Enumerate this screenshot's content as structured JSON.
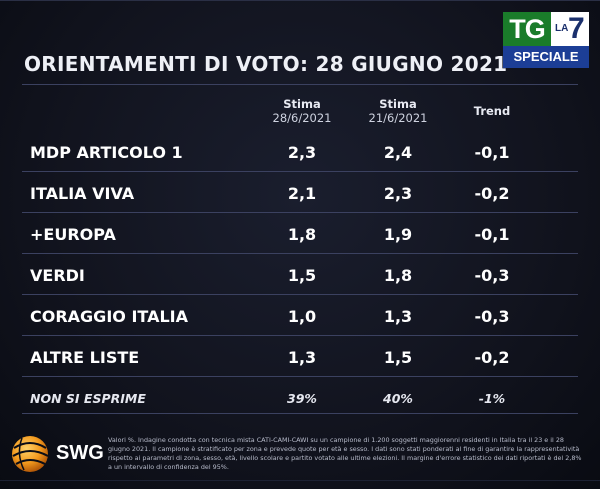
{
  "title": "ORIENTAMENTI DI VOTO: 28 GIUGNO 2021",
  "logo": {
    "tg": "TG",
    "la": "LA",
    "seven": "7",
    "speciale": "SPECIALE"
  },
  "columns": {
    "col1_line1": "Stima",
    "col1_line2": "28/6/2021",
    "col2_line1": "Stima",
    "col2_line2": "21/6/2021",
    "col3": "Trend"
  },
  "rows": [
    {
      "party": "MDP ARTICOLO 1",
      "stima1": "2,3",
      "stima2": "2,4",
      "trend": "-0,1"
    },
    {
      "party": "ITALIA VIVA",
      "stima1": "2,1",
      "stima2": "2,3",
      "trend": "-0,2"
    },
    {
      "party": "+EUROPA",
      "stima1": "1,8",
      "stima2": "1,9",
      "trend": "-0,1"
    },
    {
      "party": "VERDI",
      "stima1": "1,5",
      "stima2": "1,8",
      "trend": "-0,3"
    },
    {
      "party": "CORAGGIO ITALIA",
      "stima1": "1,0",
      "stima2": "1,3",
      "trend": "-0,3"
    },
    {
      "party": "ALTRE LISTE",
      "stima1": "1,3",
      "stima2": "1,5",
      "trend": "-0,2"
    }
  ],
  "non_si_esprime": {
    "label": "NON SI ESPRIME",
    "stima1": "39%",
    "stima2": "40%",
    "trend": "-1%"
  },
  "footnote": "Valori %. Indagine condotta con tecnica mista CATI-CAMI-CAWI su un campione di 1.200 soggetti maggiorenni residenti in Italia tra il 23 e il 28 giugno 2021. Il campione è stratificato per zona e prevede quote per età e sesso. I dati sono stati ponderati al fine di garantire la rappresentatività rispetto ai parametri di zona, sesso, età, livello scolare e partito votato alle ultime elezioni. Il margine d'errore statistico dei dati riportati è del 2,8% a un intervallo di confidenza del 95%.",
  "swg": "SWG",
  "colors": {
    "tg_green": "#1a7c2a",
    "speciale_blue": "#1c3e96",
    "swg_orange": "#f39a1e"
  }
}
